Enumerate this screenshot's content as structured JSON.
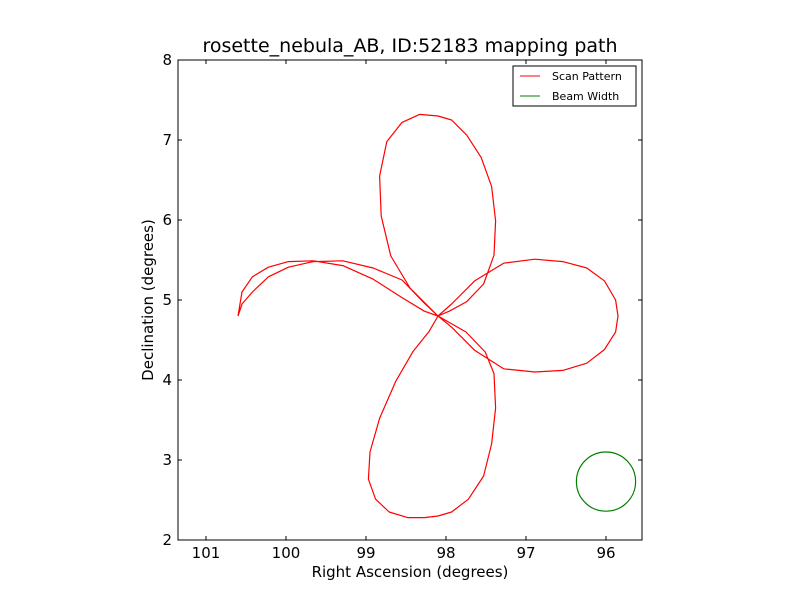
{
  "chart_data": {
    "type": "line",
    "title": "rosette_nebula_AB, ID:52183 mapping path",
    "xlabel": "Right Ascension (degrees)",
    "ylabel": "Declination (degrees)",
    "xlim": [
      101.35,
      95.55
    ],
    "ylim": [
      2,
      8
    ],
    "x_invert": true,
    "xticks": [
      101,
      100,
      99,
      98,
      97,
      96
    ],
    "yticks": [
      2,
      3,
      4,
      5,
      6,
      7,
      8
    ],
    "legend_position": "top-right",
    "grid": false,
    "center": {
      "ra": 98.1,
      "dec": 4.8
    },
    "series": [
      {
        "name": "Scan Pattern",
        "color": "#ff0000",
        "x": [
          100.6,
          100.55,
          100.42,
          100.22,
          99.97,
          99.66,
          99.29,
          98.91,
          98.55,
          98.27,
          98.1,
          97.93,
          97.64,
          97.28,
          96.89,
          96.54,
          96.24,
          96.02,
          95.88,
          95.85,
          95.88,
          96.02,
          96.24,
          96.54,
          96.89,
          97.28,
          97.64,
          97.93,
          98.1,
          98.21,
          98.41,
          98.63,
          98.83,
          98.95,
          98.97,
          98.88,
          98.71,
          98.48,
          98.27,
          98.1,
          97.93,
          97.72,
          97.53,
          97.43,
          97.38,
          97.4,
          97.51,
          97.75,
          98.1,
          98.45,
          98.69,
          98.81,
          98.83,
          98.74,
          98.55,
          98.33,
          98.1,
          97.93,
          97.74,
          97.56,
          97.43,
          97.38,
          97.4,
          97.53,
          97.74,
          97.96,
          98.1,
          98.27,
          98.55,
          98.91,
          99.29,
          99.66,
          99.97,
          100.22,
          100.42,
          100.55,
          100.6
        ],
        "y": [
          4.8,
          5.1,
          5.29,
          5.41,
          5.48,
          5.49,
          5.43,
          5.26,
          5.03,
          4.86,
          4.8,
          4.95,
          5.24,
          5.46,
          5.51,
          5.48,
          5.4,
          5.24,
          5.0,
          4.8,
          4.6,
          4.38,
          4.21,
          4.12,
          4.1,
          4.14,
          4.37,
          4.66,
          4.8,
          4.61,
          4.36,
          3.98,
          3.52,
          3.1,
          2.76,
          2.51,
          2.35,
          2.28,
          2.28,
          2.3,
          2.35,
          2.51,
          2.8,
          3.2,
          3.65,
          4.08,
          4.35,
          4.6,
          4.8,
          5.15,
          5.55,
          6.05,
          6.55,
          6.98,
          7.22,
          7.32,
          7.3,
          7.25,
          7.06,
          6.78,
          6.42,
          5.99,
          5.56,
          5.2,
          4.98,
          4.86,
          4.8,
          4.96,
          5.25,
          5.4,
          5.49,
          5.48,
          5.41,
          5.29,
          5.1,
          4.95,
          4.8
        ]
      },
      {
        "name": "Beam Width",
        "color": "#008000",
        "center_ra": 96.0,
        "center_dec": 2.73,
        "radius_deg": 0.37
      }
    ]
  }
}
